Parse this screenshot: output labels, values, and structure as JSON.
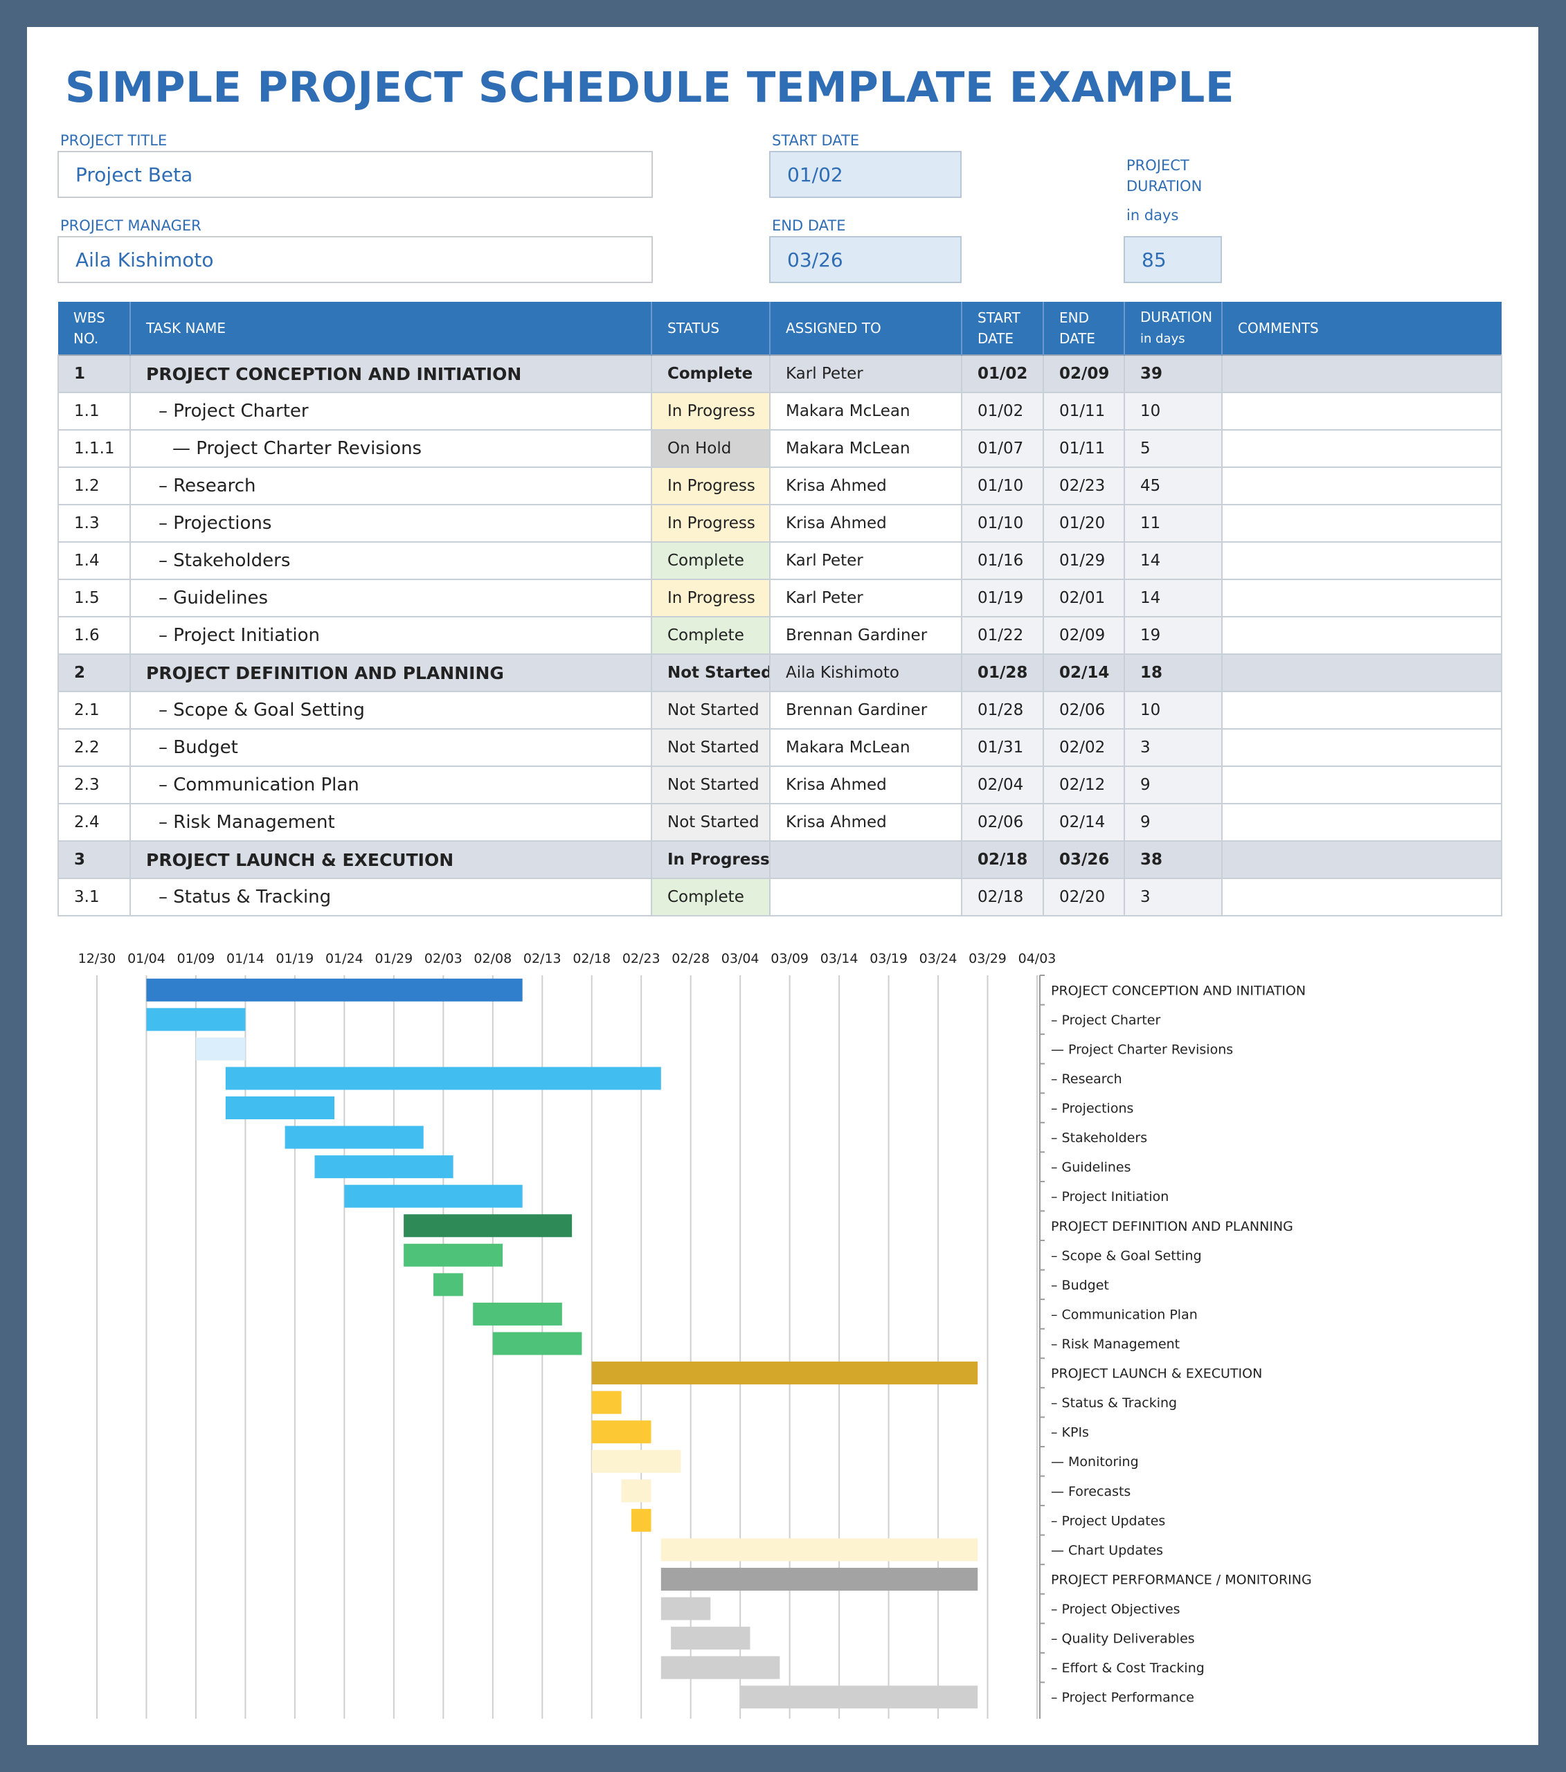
{
  "title": "SIMPLE PROJECT SCHEDULE TEMPLATE EXAMPLE",
  "project": {
    "title_label": "PROJECT TITLE",
    "title_value": "Project Beta",
    "manager_label": "PROJECT MANAGER",
    "manager_value": "Aila Kishimoto",
    "start_label": "START DATE",
    "start_value": "01/02",
    "end_label": "END DATE",
    "end_value": "03/26",
    "duration_label_1": "PROJECT",
    "duration_label_2": "DURATION",
    "duration_label_3": "in days",
    "duration_value": "85"
  },
  "table": {
    "headers": {
      "wbs_1": "WBS",
      "wbs_2": "NO.",
      "task": "TASK NAME",
      "status": "STATUS",
      "assigned": "ASSIGNED TO",
      "start_1": "START",
      "start_2": "DATE",
      "end_1": "END",
      "end_2": "DATE",
      "duration_1": "DURATION",
      "duration_2": "in days",
      "comments": "COMMENTS"
    },
    "rows": [
      {
        "wbs": "1",
        "task": "PROJECT CONCEPTION AND INITIATION",
        "status": "Complete",
        "assigned": "Karl Peter",
        "start": "01/02",
        "end": "02/09",
        "duration": "39",
        "comments": ""
      },
      {
        "wbs": "1.1",
        "task": "– Project Charter",
        "status": "In Progress",
        "assigned": "Makara McLean",
        "start": "01/02",
        "end": "01/11",
        "duration": "10",
        "comments": ""
      },
      {
        "wbs": "1.1.1",
        "task": "— Project Charter Revisions",
        "status": "On Hold",
        "assigned": "Makara McLean",
        "start": "01/07",
        "end": "01/11",
        "duration": "5",
        "comments": ""
      },
      {
        "wbs": "1.2",
        "task": "– Research",
        "status": "In Progress",
        "assigned": "Krisa Ahmed",
        "start": "01/10",
        "end": "02/23",
        "duration": "45",
        "comments": ""
      },
      {
        "wbs": "1.3",
        "task": "– Projections",
        "status": "In Progress",
        "assigned": "Krisa Ahmed",
        "start": "01/10",
        "end": "01/20",
        "duration": "11",
        "comments": ""
      },
      {
        "wbs": "1.4",
        "task": "– Stakeholders",
        "status": "Complete",
        "assigned": "Karl Peter",
        "start": "01/16",
        "end": "01/29",
        "duration": "14",
        "comments": ""
      },
      {
        "wbs": "1.5",
        "task": "– Guidelines",
        "status": "In Progress",
        "assigned": "Karl Peter",
        "start": "01/19",
        "end": "02/01",
        "duration": "14",
        "comments": ""
      },
      {
        "wbs": "1.6",
        "task": "– Project Initiation",
        "status": "Complete",
        "assigned": "Brennan Gardiner",
        "start": "01/22",
        "end": "02/09",
        "duration": "19",
        "comments": ""
      },
      {
        "wbs": "2",
        "task": "PROJECT DEFINITION AND PLANNING",
        "status": "Not Started",
        "assigned": "Aila Kishimoto",
        "start": "01/28",
        "end": "02/14",
        "duration": "18",
        "comments": ""
      },
      {
        "wbs": "2.1",
        "task": "– Scope & Goal Setting",
        "status": "Not Started",
        "assigned": "Brennan Gardiner",
        "start": "01/28",
        "end": "02/06",
        "duration": "10",
        "comments": ""
      },
      {
        "wbs": "2.2",
        "task": "– Budget",
        "status": "Not Started",
        "assigned": "Makara McLean",
        "start": "01/31",
        "end": "02/02",
        "duration": "3",
        "comments": ""
      },
      {
        "wbs": "2.3",
        "task": "– Communication Plan",
        "status": "Not Started",
        "assigned": "Krisa Ahmed",
        "start": "02/04",
        "end": "02/12",
        "duration": "9",
        "comments": ""
      },
      {
        "wbs": "2.4",
        "task": "– Risk Management",
        "status": "Not Started",
        "assigned": "Krisa Ahmed",
        "start": "02/06",
        "end": "02/14",
        "duration": "9",
        "comments": ""
      },
      {
        "wbs": "3",
        "task": "PROJECT LAUNCH & EXECUTION",
        "status": "In Progress",
        "assigned": "",
        "start": "02/18",
        "end": "03/26",
        "duration": "38",
        "comments": ""
      },
      {
        "wbs": "3.1",
        "task": "– Status & Tracking",
        "status": "Complete",
        "assigned": "",
        "start": "02/18",
        "end": "02/20",
        "duration": "3",
        "comments": ""
      }
    ]
  },
  "chart_data": {
    "type": "bar",
    "orientation": "horizontal-gantt",
    "x_ticks": [
      "12/30",
      "01/04",
      "01/09",
      "01/14",
      "01/19",
      "01/24",
      "01/29",
      "02/03",
      "02/08",
      "02/13",
      "02/18",
      "02/23",
      "02/28",
      "03/04",
      "03/09",
      "03/14",
      "03/19",
      "03/24",
      "03/29",
      "04/03"
    ],
    "xlim": [
      "12/30",
      "04/03"
    ],
    "grid": true,
    "colors": {
      "phase1": "#2f7fcc",
      "phase1_task": "#41bdf0",
      "phase1_hold": "#dbeefb",
      "phase2": "#2e8b57",
      "phase2_task": "#4fc27a",
      "phase3": "#d4a62a",
      "phase3_task": "#fcc934",
      "phase3_light": "#fdf3d1",
      "phase4": "#a3a3a3",
      "phase4_task": "#cfcfcf"
    },
    "tasks": [
      {
        "label": "PROJECT CONCEPTION AND INITIATION",
        "start": "01/04",
        "end": "02/11",
        "color": "phase1"
      },
      {
        "label": "– Project Charter",
        "start": "01/04",
        "end": "01/14",
        "color": "phase1_task"
      },
      {
        "label": "— Project Charter Revisions",
        "start": "01/09",
        "end": "01/14",
        "color": "phase1_hold"
      },
      {
        "label": "– Research",
        "start": "01/12",
        "end": "02/25",
        "color": "phase1_task"
      },
      {
        "label": "– Projections",
        "start": "01/12",
        "end": "01/23",
        "color": "phase1_task"
      },
      {
        "label": "– Stakeholders",
        "start": "01/18",
        "end": "02/01",
        "color": "phase1_task"
      },
      {
        "label": "– Guidelines",
        "start": "01/21",
        "end": "02/04",
        "color": "phase1_task"
      },
      {
        "label": "– Project Initiation",
        "start": "01/24",
        "end": "02/11",
        "color": "phase1_task"
      },
      {
        "label": "PROJECT DEFINITION AND PLANNING",
        "start": "01/30",
        "end": "02/16",
        "color": "phase2"
      },
      {
        "label": "– Scope & Goal Setting",
        "start": "01/30",
        "end": "02/09",
        "color": "phase2_task"
      },
      {
        "label": "– Budget",
        "start": "02/02",
        "end": "02/05",
        "color": "phase2_task"
      },
      {
        "label": "– Communication Plan",
        "start": "02/06",
        "end": "02/15",
        "color": "phase2_task"
      },
      {
        "label": "– Risk Management",
        "start": "02/08",
        "end": "02/17",
        "color": "phase2_task"
      },
      {
        "label": "PROJECT LAUNCH & EXECUTION",
        "start": "02/18",
        "end": "03/28",
        "color": "phase3"
      },
      {
        "label": "– Status & Tracking",
        "start": "02/18",
        "end": "02/21",
        "color": "phase3_task"
      },
      {
        "label": "– KPIs",
        "start": "02/18",
        "end": "02/24",
        "color": "phase3_task"
      },
      {
        "label": "— Monitoring",
        "start": "02/18",
        "end": "02/27",
        "color": "phase3_light"
      },
      {
        "label": "— Forecasts",
        "start": "02/21",
        "end": "02/24",
        "color": "phase3_light"
      },
      {
        "label": "– Project Updates",
        "start": "02/22",
        "end": "02/24",
        "color": "phase3_task"
      },
      {
        "label": "— Chart Updates",
        "start": "02/25",
        "end": "03/28",
        "color": "phase3_light"
      },
      {
        "label": "PROJECT PERFORMANCE / MONITORING",
        "start": "02/25",
        "end": "03/28",
        "color": "phase4"
      },
      {
        "label": "– Project Objectives",
        "start": "02/25",
        "end": "03/01",
        "color": "phase4_task"
      },
      {
        "label": "– Quality Deliverables",
        "start": "02/26",
        "end": "03/05",
        "color": "phase4_task"
      },
      {
        "label": "– Effort & Cost Tracking",
        "start": "02/25",
        "end": "03/08",
        "color": "phase4_task"
      },
      {
        "label": "– Project Performance",
        "start": "03/04",
        "end": "03/28",
        "color": "phase4_task"
      }
    ]
  }
}
